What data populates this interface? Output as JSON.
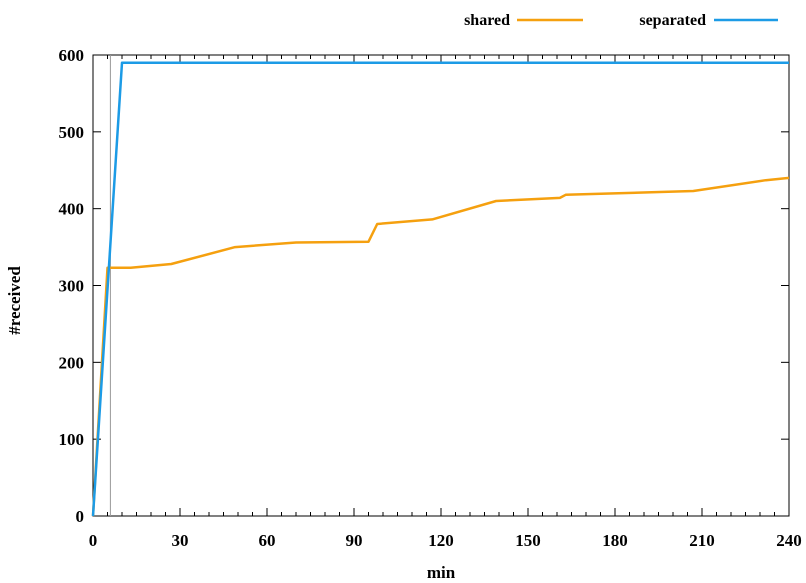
{
  "chart_data": {
    "type": "line",
    "title": "",
    "xlabel": "min",
    "ylabel": "#received",
    "xlim": [
      0,
      240
    ],
    "ylim": [
      0,
      600
    ],
    "x_ticks": [
      0,
      30,
      60,
      90,
      120,
      150,
      180,
      210,
      240
    ],
    "y_ticks": [
      0,
      100,
      200,
      300,
      400,
      500,
      600
    ],
    "grid": false,
    "legend_placement": "top-right",
    "marker_line_x": 6,
    "series": [
      {
        "name": "shared",
        "color": "#F5A00F",
        "points": [
          [
            0,
            0
          ],
          [
            5,
            323
          ],
          [
            13,
            323
          ],
          [
            27,
            328
          ],
          [
            49,
            350
          ],
          [
            70,
            356
          ],
          [
            95,
            357
          ],
          [
            98,
            380
          ],
          [
            117,
            386
          ],
          [
            139,
            410
          ],
          [
            161,
            414
          ],
          [
            163,
            418
          ],
          [
            207,
            423
          ],
          [
            232,
            437
          ],
          [
            240,
            440
          ]
        ]
      },
      {
        "name": "separated",
        "color": "#1C9BE6",
        "points": [
          [
            0,
            0
          ],
          [
            10,
            590
          ],
          [
            240,
            590
          ]
        ]
      }
    ]
  }
}
